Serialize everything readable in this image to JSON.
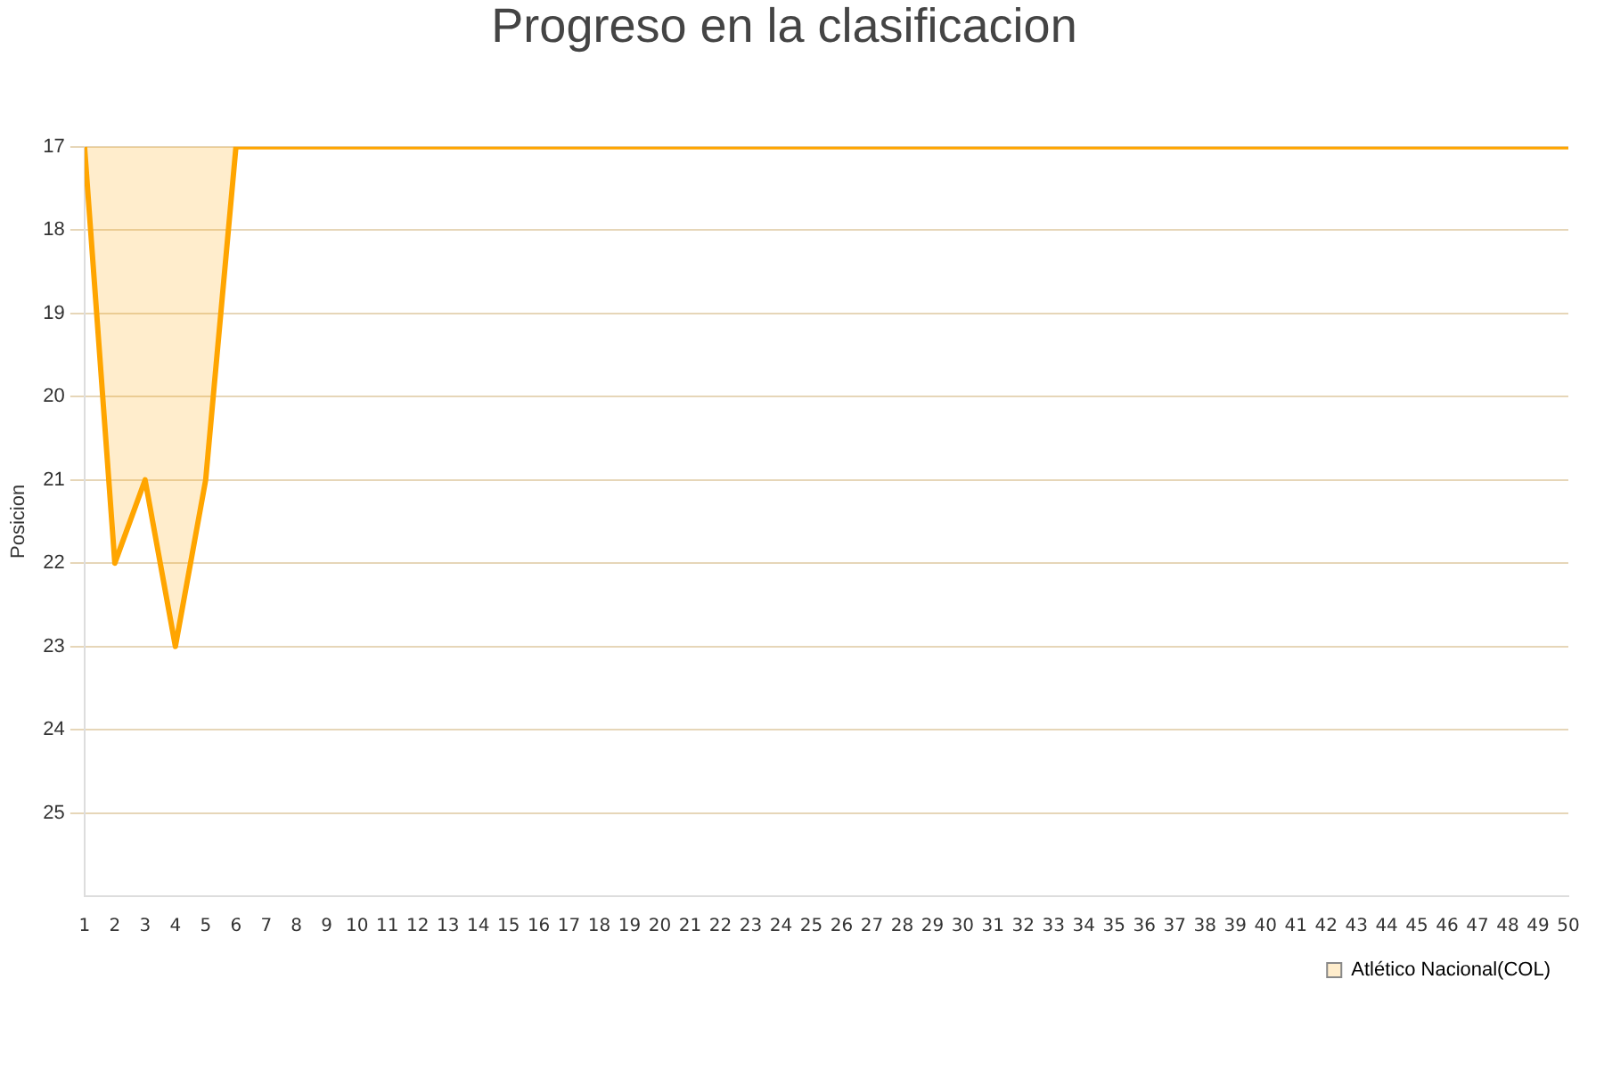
{
  "chart_data": {
    "type": "area",
    "title": "Progreso en la clasificacion",
    "ylabel": "Posicion",
    "x": [
      1,
      2,
      3,
      4,
      5,
      6,
      7,
      8,
      9,
      10,
      11,
      12,
      13,
      14,
      15,
      16,
      17,
      18,
      19,
      20,
      21,
      22,
      23,
      24,
      25,
      26,
      27,
      28,
      29,
      30,
      31,
      32,
      33,
      34,
      35,
      36,
      37,
      38,
      39,
      40,
      41,
      42,
      43,
      44,
      45,
      46,
      47,
      48,
      49,
      50
    ],
    "series": [
      {
        "name": "Atlético Nacional(COL)",
        "color": "#ffa500",
        "values": [
          17,
          22,
          21,
          23,
          21,
          17,
          17,
          17,
          17,
          17,
          17,
          17,
          17,
          17,
          17,
          17,
          17,
          17,
          17,
          17,
          17,
          17,
          17,
          17,
          17,
          17,
          17,
          17,
          17,
          17,
          17,
          17,
          17,
          17,
          17,
          17,
          17,
          17,
          17,
          17,
          17,
          17,
          17,
          17,
          17,
          17,
          17,
          17,
          17,
          17
        ]
      }
    ],
    "xlim": [
      1,
      50
    ],
    "xticks": [
      1,
      2,
      3,
      4,
      5,
      6,
      7,
      8,
      9,
      10,
      11,
      12,
      13,
      14,
      15,
      16,
      17,
      18,
      19,
      20,
      21,
      22,
      23,
      24,
      25,
      26,
      27,
      28,
      29,
      30,
      31,
      32,
      33,
      34,
      35,
      36,
      37,
      38,
      39,
      40,
      41,
      42,
      43,
      44,
      45,
      46,
      47,
      48,
      49,
      50
    ],
    "ylim": [
      26,
      17
    ],
    "yticks": [
      17,
      18,
      19,
      20,
      21,
      22,
      23,
      24,
      25
    ],
    "grid": "y",
    "legend": "bottom right"
  }
}
